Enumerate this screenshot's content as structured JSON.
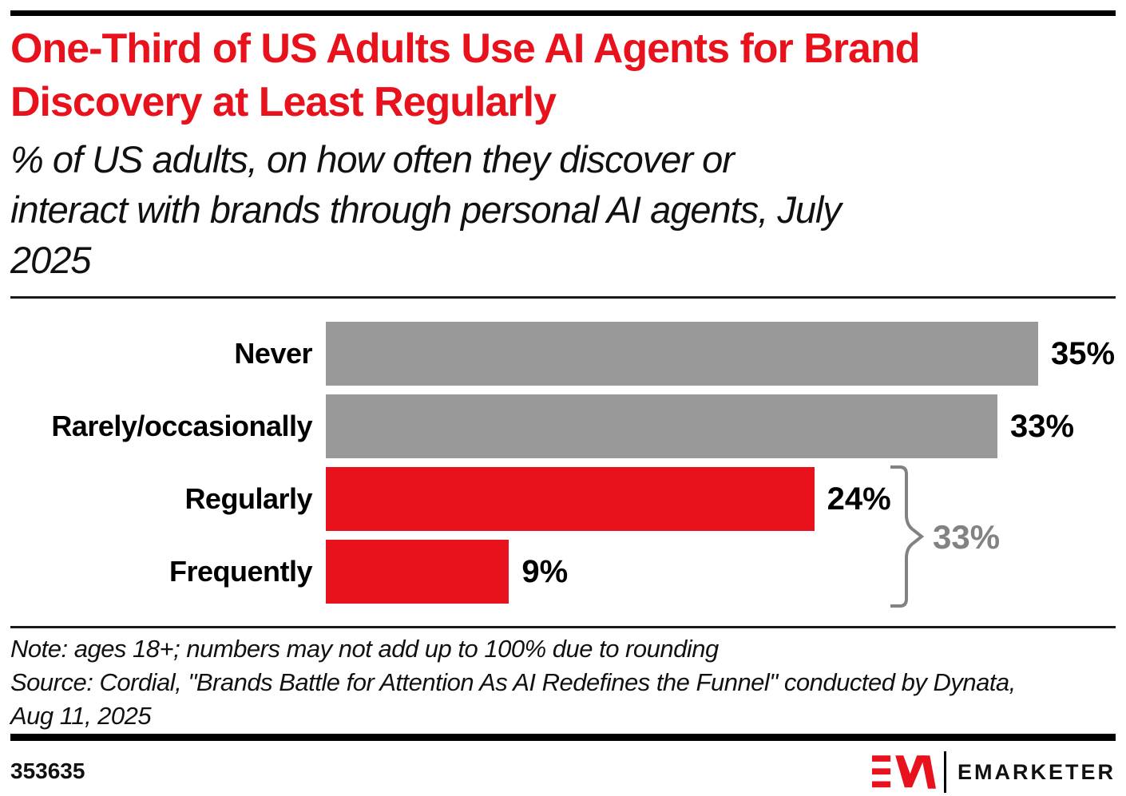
{
  "header": {
    "title_lines": [
      "One-Third of US Adults Use AI Agents for Brand",
      "Discovery at Least Regularly"
    ],
    "subtitle_lines": [
      "% of US adults, on how often they discover or",
      "interact with brands through personal AI agents, July",
      "2025"
    ]
  },
  "chart_data": {
    "type": "bar",
    "orientation": "horizontal",
    "title": "One-Third of US Adults Use AI Agents for Brand Discovery at Least Regularly",
    "subtitle": "% of US adults, on how often they discover or interact with brands through personal AI agents, July 2025",
    "categories": [
      "Never",
      "Rarely/occasionally",
      "Regularly",
      "Frequently"
    ],
    "values": [
      35,
      33,
      24,
      9
    ],
    "value_labels": [
      "35%",
      "33%",
      "24%",
      "9%"
    ],
    "bar_colors": [
      "#999999",
      "#999999",
      "#E8121C",
      "#E8121C"
    ],
    "xlim": [
      0,
      35
    ],
    "grid": false,
    "legend": false,
    "bracket_annotation": {
      "label": "33%",
      "categories": [
        "Regularly",
        "Frequently"
      ],
      "color": "#828282"
    }
  },
  "colors": {
    "accent_red": "#E8121C",
    "bar_gray": "#999999",
    "bracket_gray": "#828282",
    "rule_black": "#000000"
  },
  "footnote": {
    "note": "Note: ages 18+; numbers may not add up to 100% due to rounding",
    "source": "Source: Cordial, \"Brands Battle for Attention As AI Redefines the Funnel\" conducted by Dynata, Aug 11, 2025"
  },
  "footer": {
    "chart_id": "353635",
    "brand": "EMARKETER"
  }
}
